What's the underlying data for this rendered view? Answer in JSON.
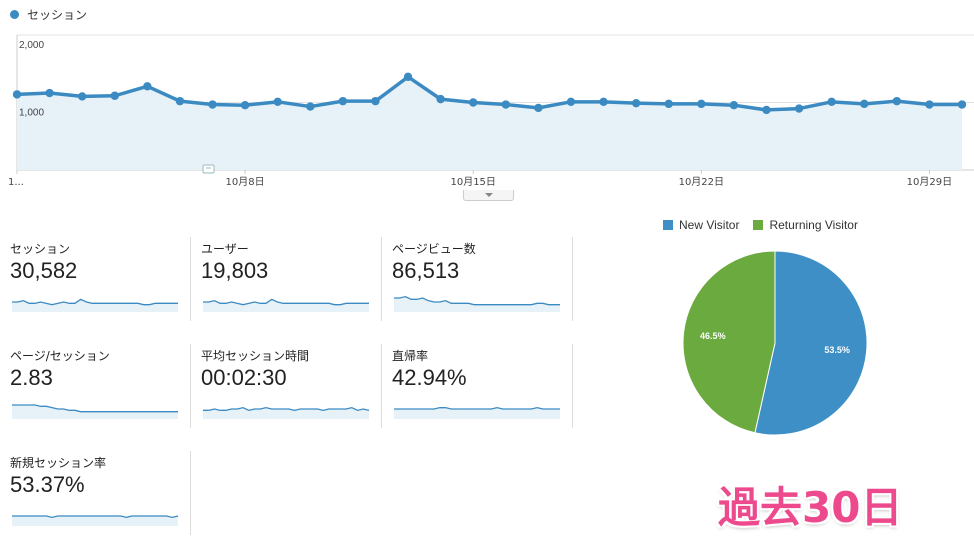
{
  "legend": {
    "series_label": "セッション"
  },
  "colors": {
    "line": "#3b8bc2",
    "area": "#e6f1f8",
    "new_visitor": "#3d8fc6",
    "returning_visitor": "#6aaa3f",
    "stamp": "#ec4a8c"
  },
  "chart_data": [
    {
      "type": "area",
      "series": [
        {
          "name": "セッション",
          "values": [
            1120,
            1140,
            1090,
            1100,
            1240,
            1020,
            970,
            960,
            1010,
            940,
            1020,
            1020,
            1380,
            1050,
            1000,
            970,
            920,
            1010,
            1010,
            990,
            980,
            980,
            960,
            890,
            910,
            1010,
            980,
            1020,
            970,
            970
          ]
        }
      ],
      "y_ticks": [
        "2,000",
        "1,000"
      ],
      "ylim": [
        0,
        2000
      ],
      "x_tick_labels": [
        {
          "index": 0,
          "label": "1..."
        },
        {
          "index": 7,
          "label": "10月8日"
        },
        {
          "index": 14,
          "label": "10月15日"
        },
        {
          "index": 21,
          "label": "10月22日"
        },
        {
          "index": 28,
          "label": "10月29日"
        }
      ],
      "grid": true
    },
    {
      "type": "pie",
      "legend_position": "top",
      "slices": [
        {
          "name": "New Visitor",
          "value": 53.5,
          "label": "53.5%"
        },
        {
          "name": "Returning Visitor",
          "value": 46.5,
          "label": "46.5%"
        }
      ]
    }
  ],
  "metrics": [
    {
      "name": "セッション",
      "value": "30,582",
      "spark": [
        6,
        6,
        7,
        5,
        5,
        6,
        5,
        4,
        5,
        6,
        5,
        5,
        8,
        6,
        5,
        5,
        5,
        5,
        5,
        5,
        5,
        5,
        5,
        4,
        4,
        5,
        5,
        5,
        5,
        5
      ]
    },
    {
      "name": "ユーザー",
      "value": "19,803",
      "spark": [
        6,
        6,
        7,
        5,
        5,
        6,
        5,
        4,
        5,
        6,
        5,
        5,
        8,
        6,
        5,
        5,
        5,
        5,
        5,
        5,
        5,
        5,
        5,
        4,
        4,
        5,
        5,
        5,
        5,
        5
      ]
    },
    {
      "name": "ページビュー数",
      "value": "86,513",
      "spark": [
        9,
        9,
        10,
        8,
        8,
        9,
        7,
        6,
        6,
        7,
        5,
        5,
        5,
        5,
        4,
        4,
        4,
        4,
        4,
        4,
        4,
        4,
        4,
        4,
        4,
        5,
        5,
        4,
        4,
        4
      ]
    },
    {
      "name": "ページ/セッション",
      "value": "2.83",
      "spark": [
        9,
        9,
        9,
        9,
        9,
        8,
        8,
        7,
        6,
        6,
        5,
        5,
        4,
        4,
        4,
        4,
        4,
        4,
        4,
        4,
        4,
        4,
        4,
        4,
        4,
        4,
        4,
        4,
        4,
        4
      ]
    },
    {
      "name": "平均セッション時間",
      "value": "00:02:30",
      "spark": [
        5,
        5,
        6,
        5,
        5,
        6,
        6,
        7,
        5,
        6,
        6,
        7,
        6,
        6,
        6,
        6,
        5,
        6,
        6,
        6,
        6,
        5,
        6,
        6,
        6,
        6,
        7,
        5,
        6,
        5
      ]
    },
    {
      "name": "直帰率",
      "value": "42.94%",
      "spark": [
        6,
        6,
        6,
        6,
        6,
        6,
        6,
        6,
        7,
        7,
        6,
        6,
        6,
        6,
        6,
        6,
        6,
        6,
        7,
        6,
        6,
        6,
        6,
        6,
        6,
        7,
        6,
        6,
        6,
        6
      ]
    },
    {
      "name": "新規セッション率",
      "value": "53.37%",
      "spark": [
        6,
        6,
        6,
        6,
        6,
        6,
        6,
        5,
        6,
        6,
        6,
        6,
        6,
        6,
        6,
        6,
        6,
        6,
        6,
        6,
        5,
        6,
        6,
        6,
        6,
        6,
        6,
        6,
        5,
        6
      ]
    }
  ],
  "stamp_text": "過去30日"
}
